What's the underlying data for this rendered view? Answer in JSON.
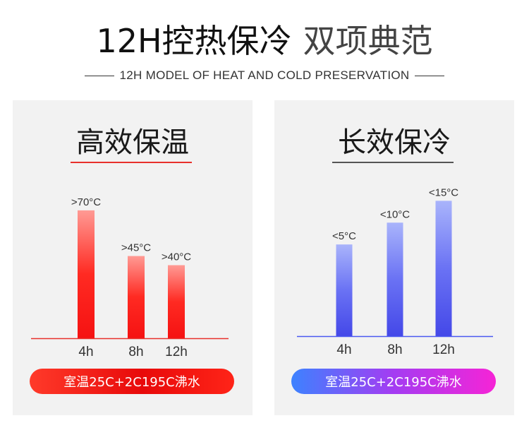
{
  "header": {
    "title_main": "12H控热保冷",
    "title_sub": "双项典范",
    "subtitle": "12H MODEL OF HEAT AND COLD PRESERVATION"
  },
  "panels": {
    "left": {
      "heading": "高效保温",
      "footnote": "室温25C+2C195C沸水"
    },
    "right": {
      "heading": "长效保冷",
      "footnote": "室温25C+2C195C沸水"
    }
  },
  "colors": {
    "heat_accent": "#e8302c",
    "cold_accent": "#4a58f0"
  },
  "chart_data": [
    {
      "type": "bar",
      "title": "高效保温",
      "categories": [
        "4h",
        "8h",
        "12h"
      ],
      "values": [
        70,
        45,
        40
      ],
      "data_labels": [
        ">70°C",
        ">45°C",
        ">40°C"
      ],
      "ylim": [
        0,
        80
      ],
      "grid": false,
      "bar_color": "red-gradient"
    },
    {
      "type": "bar",
      "title": "长效保冷",
      "categories": [
        "4h",
        "8h",
        "12h"
      ],
      "values": [
        5,
        10,
        15
      ],
      "data_labels": [
        "<5°C",
        "<10°C",
        "<15°C"
      ],
      "ylim": [
        -16,
        17
      ],
      "grid": false,
      "bar_color": "blue-gradient"
    }
  ]
}
